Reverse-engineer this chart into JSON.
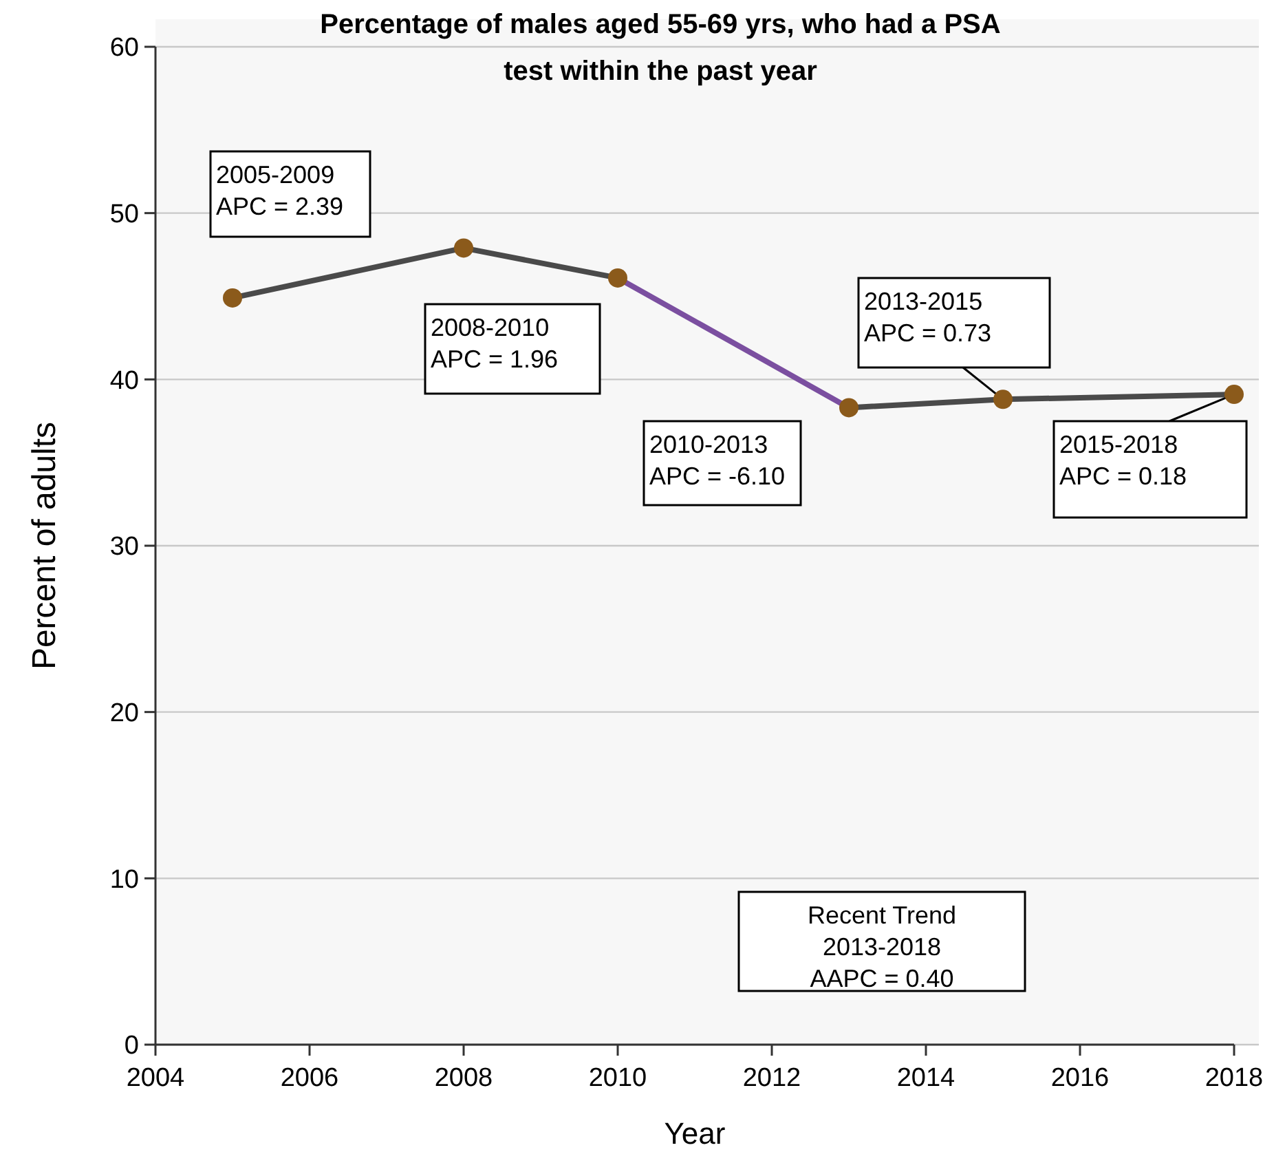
{
  "chart_data": {
    "type": "line",
    "title": "Percentage of males aged 55-69 yrs, who had a PSA test within the past year",
    "xlabel": "Year",
    "ylabel": "Percent of adults",
    "xlim": [
      2004,
      2018
    ],
    "xticks": [
      2004,
      2006,
      2008,
      2010,
      2012,
      2014,
      2016,
      2018
    ],
    "ylim": [
      0,
      60
    ],
    "yticks": [
      0,
      10,
      20,
      30,
      40,
      50,
      60
    ],
    "grid": "y",
    "marker": "circle",
    "line_style": "solid",
    "series": [
      {
        "type": "line",
        "marker": "none",
        "color": "#4a4a4a",
        "x": [
          2005,
          2008,
          2010
        ],
        "values": [
          44.9,
          47.9,
          46.1
        ]
      },
      {
        "type": "line",
        "marker": "none",
        "color": "#7b4fa0",
        "x": [
          2010,
          2013
        ],
        "values": [
          46.1,
          38.3
        ]
      },
      {
        "type": "line",
        "marker": "none",
        "color": "#4a4a4a",
        "x": [
          2013,
          2015,
          2018
        ],
        "values": [
          38.3,
          38.8,
          39.1
        ]
      },
      {
        "type": "scatter",
        "color": "#8b5a1b",
        "x": [
          2005,
          2008,
          2010,
          2013,
          2015,
          2018
        ],
        "values": [
          44.9,
          47.9,
          46.1,
          38.3,
          38.8,
          39.1
        ]
      }
    ],
    "annotations": [
      "2005-2009\nAPC = 2.39",
      "2008-2010\nAPC = 1.96",
      "2010-2013\nAPC = -6.10",
      {
        "text": "2013-2015\nAPC = 0.73",
        "x": 2015,
        "y": 38.8
      },
      {
        "text": "2015-2018\nAPC = 0.18",
        "x": 2018,
        "y": 39.1
      },
      "Recent Trend\n2013-2018\nAAPC = 0.40"
    ]
  }
}
